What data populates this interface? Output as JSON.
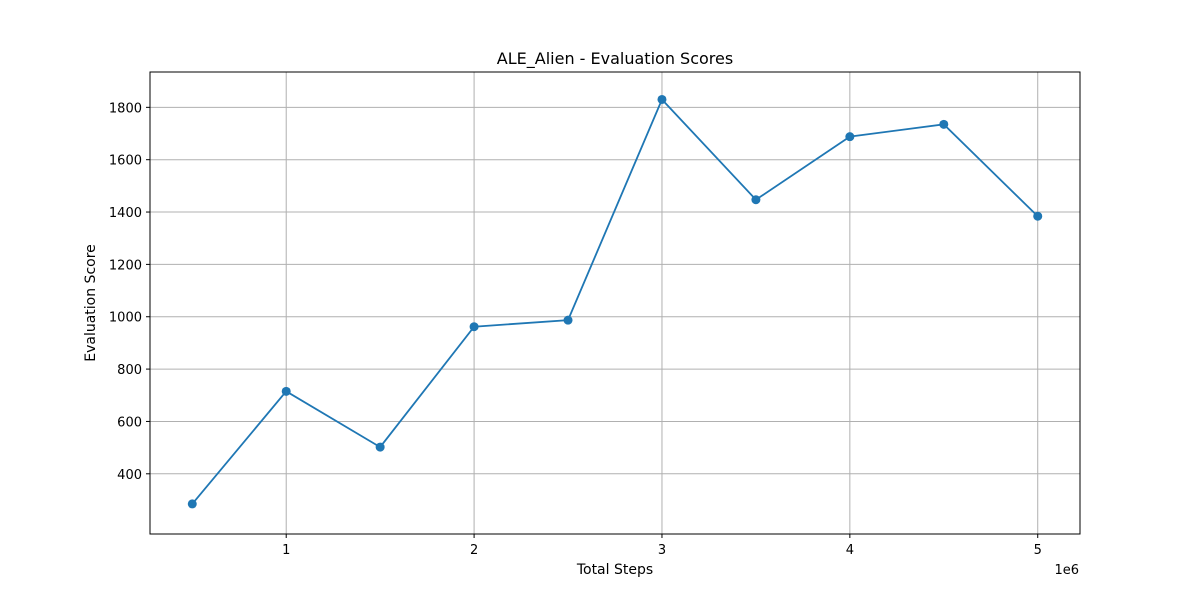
{
  "chart_data": {
    "type": "line",
    "title": "ALE_Alien - Evaluation Scores",
    "xlabel": "Total Steps",
    "ylabel": "Evaluation Score",
    "x_offset_text": "1e6",
    "x_scale": 1000000,
    "xlim": [
      275000,
      5225000
    ],
    "ylim": [
      170,
      1935
    ],
    "x_ticks": [
      1000000,
      2000000,
      3000000,
      4000000,
      5000000
    ],
    "x_tick_labels": [
      "1",
      "2",
      "3",
      "4",
      "5"
    ],
    "y_ticks": [
      400,
      600,
      800,
      1000,
      1200,
      1400,
      1600,
      1800
    ],
    "y_tick_labels": [
      "400",
      "600",
      "800",
      "1000",
      "1200",
      "1400",
      "1600",
      "1800"
    ],
    "grid": true,
    "series": [
      {
        "x": [
          500000,
          1000000,
          1500000,
          2000000,
          2500000,
          3000000,
          3500000,
          4000000,
          4500000,
          5000000
        ],
        "y": [
          285,
          715,
          502,
          962,
          987,
          1830,
          1447,
          1688,
          1735,
          1384
        ],
        "color": "#1f77b4",
        "marker": "circle"
      }
    ]
  }
}
